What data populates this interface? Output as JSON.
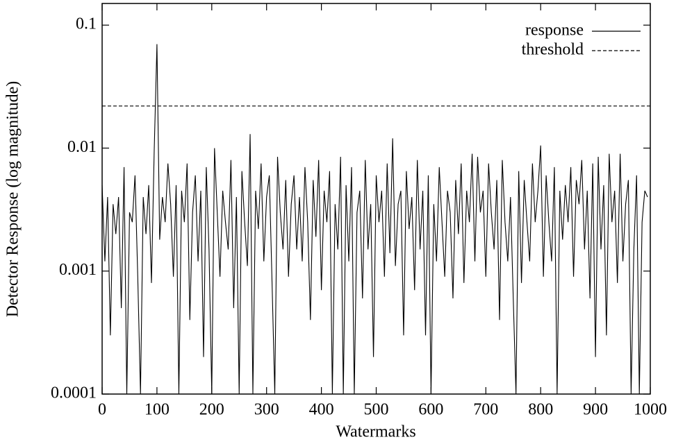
{
  "chart_data": {
    "type": "line",
    "log_y": true,
    "xlabel": "Watermarks",
    "ylabel": "Detector Response (log magnitude)",
    "xlim": [
      0,
      1000
    ],
    "xticks": [
      0,
      100,
      200,
      300,
      400,
      500,
      600,
      700,
      800,
      900,
      1000
    ],
    "ylim": [
      0.0001,
      0.15
    ],
    "yticks": [
      0.1,
      0.01,
      0.001,
      0.0001
    ],
    "legend": "upper right",
    "series": [
      {
        "name": "response",
        "color": "#000000",
        "style": "solid",
        "x": [
          0,
          5,
          10,
          15,
          20,
          25,
          30,
          35,
          40,
          45,
          50,
          55,
          60,
          65,
          70,
          75,
          80,
          85,
          90,
          95,
          100,
          105,
          110,
          115,
          120,
          125,
          130,
          135,
          140,
          145,
          150,
          155,
          160,
          165,
          170,
          175,
          180,
          185,
          190,
          195,
          200,
          205,
          210,
          215,
          220,
          225,
          230,
          235,
          240,
          245,
          250,
          255,
          260,
          265,
          270,
          275,
          280,
          285,
          290,
          295,
          300,
          305,
          310,
          315,
          320,
          325,
          330,
          335,
          340,
          345,
          350,
          355,
          360,
          365,
          370,
          375,
          380,
          385,
          390,
          395,
          400,
          405,
          410,
          415,
          420,
          425,
          430,
          435,
          440,
          445,
          450,
          455,
          460,
          465,
          470,
          475,
          480,
          485,
          490,
          495,
          500,
          505,
          510,
          515,
          520,
          525,
          530,
          535,
          540,
          545,
          550,
          555,
          560,
          565,
          570,
          575,
          580,
          585,
          590,
          595,
          600,
          605,
          610,
          615,
          620,
          625,
          630,
          635,
          640,
          645,
          650,
          655,
          660,
          665,
          670,
          675,
          680,
          685,
          690,
          695,
          700,
          705,
          710,
          715,
          720,
          725,
          730,
          735,
          740,
          745,
          750,
          755,
          760,
          765,
          770,
          775,
          780,
          785,
          790,
          795,
          800,
          805,
          810,
          815,
          820,
          825,
          830,
          835,
          840,
          845,
          850,
          855,
          860,
          865,
          870,
          875,
          880,
          885,
          890,
          895,
          900,
          905,
          910,
          915,
          920,
          925,
          930,
          935,
          940,
          945,
          950,
          955,
          960,
          965,
          970,
          975,
          980,
          985,
          990,
          995
        ],
        "values": [
          0.005,
          0.0012,
          0.004,
          0.0003,
          0.0035,
          0.002,
          0.004,
          0.0005,
          0.007,
          0.0001,
          0.003,
          0.0025,
          0.006,
          0.0009,
          0.0001,
          0.004,
          0.002,
          0.005,
          0.0008,
          0.0095,
          0.07,
          0.0018,
          0.004,
          0.0025,
          0.0075,
          0.0035,
          0.0009,
          0.005,
          0.0001,
          0.0045,
          0.0025,
          0.0075,
          0.0004,
          0.003,
          0.006,
          0.0012,
          0.0045,
          0.0002,
          0.007,
          0.0015,
          0.0001,
          0.01,
          0.003,
          0.0009,
          0.0045,
          0.0025,
          0.0015,
          0.008,
          0.0005,
          0.004,
          0.0001,
          0.0065,
          0.0025,
          0.0011,
          0.013,
          0.0001,
          0.0045,
          0.0022,
          0.0075,
          0.0012,
          0.004,
          0.006,
          0.0008,
          0.0001,
          0.0085,
          0.003,
          0.0015,
          0.0055,
          0.0009,
          0.0035,
          0.006,
          0.0015,
          0.004,
          0.0012,
          0.007,
          0.0025,
          0.0004,
          0.0055,
          0.0019,
          0.008,
          0.0007,
          0.0045,
          0.0025,
          0.0065,
          0.0001,
          0.0035,
          0.0015,
          0.0085,
          0.0001,
          0.005,
          0.0012,
          0.007,
          0.0001,
          0.003,
          0.0045,
          0.0006,
          0.008,
          0.0015,
          0.0035,
          0.0002,
          0.006,
          0.0025,
          0.0045,
          0.0009,
          0.0075,
          0.0014,
          0.012,
          0.0011,
          0.0035,
          0.0045,
          0.0003,
          0.0065,
          0.0022,
          0.004,
          0.0007,
          0.008,
          0.0015,
          0.0045,
          0.0003,
          0.006,
          0.0001,
          0.0035,
          0.0012,
          0.007,
          0.0025,
          0.0009,
          0.0045,
          0.003,
          0.0006,
          0.0055,
          0.002,
          0.0075,
          0.0008,
          0.0045,
          0.0025,
          0.009,
          0.0012,
          0.0085,
          0.003,
          0.0045,
          0.0009,
          0.0075,
          0.003,
          0.0015,
          0.0055,
          0.0004,
          0.008,
          0.0025,
          0.0012,
          0.004,
          0.0006,
          0.0001,
          0.0065,
          0.0008,
          0.0055,
          0.0025,
          0.0012,
          0.0075,
          0.0025,
          0.0045,
          0.0105,
          0.0009,
          0.006,
          0.0025,
          0.0012,
          0.007,
          0.0001,
          0.0045,
          0.0018,
          0.005,
          0.0025,
          0.007,
          0.0009,
          0.0055,
          0.0035,
          0.008,
          0.0015,
          0.0045,
          0.0006,
          0.0075,
          0.0002,
          0.0085,
          0.0015,
          0.005,
          0.0003,
          0.009,
          0.0025,
          0.0045,
          0.0008,
          0.009,
          0.0012,
          0.0035,
          0.0055,
          0.0001,
          0.0015,
          0.006,
          0.0001,
          0.0025,
          0.0045,
          0.004
        ]
      },
      {
        "name": "threshold",
        "color": "#000000",
        "style": "dashed",
        "x": [
          0,
          1000
        ],
        "values": [
          0.022,
          0.022
        ]
      }
    ]
  }
}
